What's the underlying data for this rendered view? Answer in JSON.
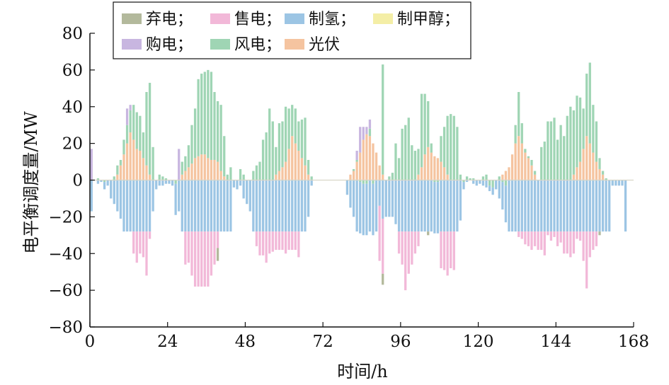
{
  "chart_data": {
    "type": "bar",
    "stacked": true,
    "xlabel": "时间/h",
    "ylabel": "电平衡调度量/MW",
    "xlim": [
      0,
      168
    ],
    "ylim": [
      -80,
      80
    ],
    "xticks": [
      "0",
      "24",
      "48",
      "72",
      "96",
      "120",
      "144",
      "168"
    ],
    "yticks": [
      "80",
      "60",
      "40",
      "20",
      "0",
      "−20",
      "−40",
      "−60",
      "−80"
    ],
    "grid": false,
    "legend_position": "top-left",
    "legend": [
      {
        "label": "弃电；",
        "color": "#b3b99c"
      },
      {
        "label": "售电；",
        "color": "#f2b8d8"
      },
      {
        "label": "制氢；",
        "color": "#9cc5e4"
      },
      {
        "label": "制甲醇；",
        "color": "#f4eea6"
      },
      {
        "label": "购电；",
        "color": "#c8b6e0"
      },
      {
        "label": "风电；",
        "color": "#9fd5b4"
      },
      {
        "label": "光伏",
        "color": "#f5c4a0"
      }
    ],
    "hours": [
      0,
      1,
      2,
      3,
      4,
      5,
      6,
      7,
      8,
      9,
      10,
      11,
      12,
      13,
      14,
      15,
      16,
      17,
      18,
      19,
      20,
      21,
      22,
      23,
      24,
      25,
      26,
      27,
      28,
      29,
      30,
      31,
      32,
      33,
      34,
      35,
      36,
      37,
      38,
      39,
      40,
      41,
      42,
      43,
      44,
      45,
      46,
      47,
      48,
      49,
      50,
      51,
      52,
      53,
      54,
      55,
      56,
      57,
      58,
      59,
      60,
      61,
      62,
      63,
      64,
      65,
      66,
      67,
      68,
      69,
      70,
      71,
      72,
      73,
      74,
      75,
      76,
      77,
      78,
      79,
      80,
      81,
      82,
      83,
      84,
      85,
      86,
      87,
      88,
      89,
      90,
      91,
      92,
      93,
      94,
      95,
      96,
      97,
      98,
      99,
      100,
      101,
      102,
      103,
      104,
      105,
      106,
      107,
      108,
      109,
      110,
      111,
      112,
      113,
      114,
      115,
      116,
      117,
      118,
      119,
      120,
      121,
      122,
      123,
      124,
      125,
      126,
      127,
      128,
      129,
      130,
      131,
      132,
      133,
      134,
      135,
      136,
      137,
      138,
      139,
      140,
      141,
      142,
      143,
      144,
      145,
      146,
      147,
      148,
      149,
      150,
      151,
      152,
      153,
      154,
      155,
      156,
      157,
      158,
      159,
      160,
      161,
      162,
      163,
      164,
      165,
      166,
      167
    ],
    "series": [
      {
        "name": "光伏",
        "values": [
          0,
          0,
          0,
          0,
          0,
          0,
          0,
          0,
          3,
          8,
          14,
          20,
          26,
          22,
          17,
          16,
          12,
          8,
          3,
          0,
          0,
          0,
          0,
          0,
          0,
          0,
          0,
          0,
          3,
          5,
          7,
          9,
          12,
          13,
          14,
          14,
          12,
          11,
          11,
          10,
          5,
          2,
          0,
          0,
          0,
          0,
          0,
          0,
          0,
          0,
          0,
          0,
          0,
          0,
          0,
          0,
          0,
          3,
          5,
          7,
          10,
          17,
          24,
          20,
          16,
          12,
          8,
          3,
          0,
          0,
          0,
          0,
          0,
          0,
          0,
          0,
          0,
          0,
          0,
          0,
          3,
          5,
          10,
          15,
          22,
          25,
          24,
          20,
          15,
          8,
          3,
          0,
          0,
          0,
          0,
          0,
          0,
          0,
          0,
          0,
          0,
          3,
          7,
          14,
          18,
          15,
          13,
          12,
          10,
          7,
          3,
          0,
          0,
          0,
          0,
          0,
          0,
          0,
          0,
          0,
          0,
          0,
          0,
          0,
          0,
          0,
          0,
          3,
          5,
          7,
          14,
          20,
          24,
          20,
          15,
          12,
          8,
          3,
          0,
          0,
          0,
          0,
          0,
          0,
          0,
          0,
          0,
          0,
          0,
          3,
          7,
          10,
          17,
          24,
          20,
          15,
          10,
          6,
          3,
          0,
          0,
          0,
          0,
          0,
          0,
          0,
          0,
          0
        ]
      },
      {
        "name": "风电",
        "values": [
          0,
          0,
          1,
          0,
          -1,
          0,
          0,
          2,
          5,
          3,
          8,
          10,
          12,
          19,
          20,
          19,
          14,
          40,
          50,
          18,
          0,
          3,
          2,
          1,
          0,
          0,
          -2,
          0,
          7,
          8,
          12,
          21,
          27,
          42,
          44,
          45,
          48,
          48,
          37,
          33,
          36,
          22,
          3,
          7,
          0,
          0,
          6,
          3,
          0,
          0,
          5,
          8,
          10,
          22,
          26,
          39,
          32,
          15,
          26,
          25,
          30,
          22,
          17,
          19,
          16,
          21,
          26,
          8,
          2,
          0,
          0,
          0,
          0,
          0,
          0,
          0,
          0,
          0,
          0,
          0,
          0,
          1,
          1,
          -1,
          -2,
          -2,
          4,
          -2,
          0,
          0,
          60,
          0,
          2,
          4,
          20,
          12,
          28,
          30,
          34,
          19,
          16,
          14,
          40,
          33,
          25,
          5,
          -1,
          -1,
          14,
          22,
          32,
          36,
          35,
          29,
          3,
          -1,
          2,
          1,
          1,
          0,
          0,
          2,
          3,
          -3,
          -4,
          0,
          2,
          -1,
          -3,
          0,
          0,
          10,
          24,
          11,
          2,
          1,
          3,
          2,
          0,
          18,
          21,
          32,
          32,
          34,
          22,
          30,
          24,
          35,
          40,
          35,
          39,
          35,
          22,
          34,
          44,
          26,
          22,
          6,
          2,
          1,
          0,
          0
        ]
      },
      {
        "name": "购电",
        "values": [
          17,
          0,
          0,
          0,
          0,
          0,
          0,
          0,
          0,
          0,
          0,
          9,
          3,
          0,
          0,
          0,
          0,
          0,
          0,
          0,
          0,
          0,
          0,
          0,
          0,
          0,
          0,
          17,
          0,
          0,
          0,
          0,
          0,
          0,
          0,
          0,
          0,
          0,
          0,
          0,
          0,
          0,
          0,
          0,
          0,
          0,
          0,
          0,
          0,
          0,
          0,
          0,
          0,
          0,
          0,
          0,
          0,
          0,
          0,
          0,
          0,
          0,
          0,
          0,
          0,
          0,
          0,
          0,
          0,
          0,
          0,
          0,
          0,
          0,
          0,
          0,
          0,
          0,
          0,
          0,
          0,
          0,
          5,
          14,
          7,
          4,
          5,
          0,
          0,
          0,
          0,
          0,
          0,
          0,
          0,
          0,
          0,
          0,
          0,
          0,
          0,
          0,
          0,
          0,
          0,
          0,
          0,
          0,
          0,
          0,
          0,
          0,
          0,
          0,
          0,
          0,
          0,
          0,
          0,
          0,
          0,
          0,
          0,
          0,
          0,
          0,
          0,
          0,
          0,
          0,
          0,
          0,
          0,
          0,
          0,
          0,
          0,
          0,
          0,
          0,
          0,
          0,
          0,
          0,
          0,
          0,
          0,
          0,
          0,
          0,
          0,
          0,
          0,
          0,
          0,
          0,
          0,
          0,
          0,
          0,
          0,
          0,
          0,
          0
        ]
      },
      {
        "name": "制甲醇",
        "values": [
          0,
          0,
          0,
          0,
          0,
          0,
          0,
          0,
          0,
          0,
          0,
          0,
          0,
          0,
          0,
          0,
          0,
          0,
          0,
          0,
          0,
          0,
          0,
          0,
          0,
          0,
          0,
          0,
          0,
          0,
          0,
          0,
          0,
          0,
          0,
          0,
          0,
          0,
          0,
          0,
          0,
          0,
          0,
          0,
          0,
          0,
          0,
          0,
          0,
          0,
          0,
          0,
          0,
          0,
          0,
          0,
          0,
          0,
          0,
          0,
          0,
          0,
          0,
          0,
          0,
          0,
          0,
          0,
          0,
          0,
          0,
          0,
          0,
          0,
          0,
          0,
          0,
          0,
          0,
          0,
          0,
          0,
          0,
          0,
          0,
          0,
          0,
          0,
          0,
          0,
          0,
          0,
          0,
          0,
          0,
          0,
          0,
          0,
          0,
          0,
          0,
          0,
          0,
          0,
          0,
          0,
          0,
          0,
          0,
          0,
          0,
          0,
          0,
          0,
          0,
          0,
          0,
          0,
          0,
          0,
          0,
          0,
          0,
          0,
          0,
          0,
          0,
          0,
          0,
          0,
          0,
          0,
          0,
          0,
          0,
          0,
          0,
          0,
          0,
          0,
          0,
          0,
          0,
          0,
          0,
          0,
          0,
          0,
          0,
          0,
          0,
          0,
          0,
          0,
          0,
          0,
          0,
          0,
          0,
          0,
          0,
          0,
          0,
          0,
          0,
          0,
          0,
          0
        ]
      },
      {
        "name": "制氢",
        "values": [
          -17,
          0,
          -2,
          -1,
          -4,
          -3,
          -10,
          -13,
          -17,
          -21,
          -28,
          -28,
          -28,
          -28,
          -28,
          -28,
          -28,
          -28,
          -28,
          -17,
          -5,
          -3,
          -3,
          -2,
          -2,
          -3,
          -17,
          -17,
          -28,
          -28,
          -28,
          -28,
          -28,
          -28,
          -28,
          -28,
          -28,
          -28,
          -28,
          -28,
          -28,
          -28,
          -28,
          -28,
          -4,
          -5,
          -3,
          -10,
          -13,
          -17,
          -28,
          -28,
          -28,
          -28,
          -28,
          -28,
          -28,
          -28,
          -28,
          -28,
          -28,
          -28,
          -28,
          -28,
          -28,
          -28,
          -28,
          -20,
          -3,
          0,
          0,
          0,
          0,
          0,
          0,
          0,
          0,
          0,
          0,
          -8,
          -15,
          -20,
          -28,
          -28,
          -28,
          -28,
          -28,
          -28,
          -28,
          -14,
          -21,
          -20,
          -20,
          -20,
          -24,
          -28,
          -28,
          -28,
          -28,
          -28,
          -28,
          -28,
          -28,
          -28,
          -28,
          -28,
          -28,
          -28,
          -28,
          -28,
          -28,
          -28,
          -28,
          -28,
          -22,
          -4,
          -1,
          0,
          -2,
          -3,
          -2,
          -3,
          -4,
          -3,
          -4,
          -5,
          -10,
          -15,
          -20,
          -28,
          -28,
          -28,
          -28,
          -28,
          -28,
          -28,
          -28,
          -28,
          -28,
          -28,
          -28,
          -28,
          -28,
          -28,
          -28,
          -28,
          -28,
          -28,
          -28,
          -28,
          -28,
          -28,
          -28,
          -28,
          -28,
          -28,
          -28,
          -28,
          -28,
          -28,
          -28,
          -3,
          -3,
          -3,
          -3,
          -28
        ]
      },
      {
        "name": "售电",
        "values": [
          0,
          0,
          0,
          0,
          0,
          0,
          0,
          0,
          0,
          0,
          0,
          0,
          0,
          -12,
          -17,
          -12,
          -14,
          -24,
          -4,
          0,
          0,
          0,
          0,
          0,
          0,
          0,
          0,
          0,
          0,
          -18,
          -17,
          -24,
          -30,
          -30,
          -30,
          -30,
          -30,
          -24,
          -18,
          -9,
          0,
          0,
          0,
          0,
          0,
          0,
          0,
          0,
          0,
          0,
          0,
          -8,
          -13,
          -13,
          -17,
          -12,
          -11,
          -10,
          -10,
          -10,
          -12,
          -10,
          -10,
          -10,
          -14,
          0,
          0,
          0,
          0,
          0,
          0,
          0,
          0,
          0,
          0,
          0,
          0,
          0,
          0,
          0,
          0,
          0,
          0,
          0,
          0,
          0,
          0,
          0,
          0,
          -30,
          -30,
          0,
          0,
          0,
          0,
          -12,
          -18,
          -32,
          -23,
          -18,
          -12,
          -8,
          0,
          0,
          0,
          0,
          0,
          0,
          -20,
          -21,
          -24,
          -20,
          -21,
          0,
          0,
          0,
          0,
          0,
          0,
          0,
          0,
          0,
          0,
          0,
          0,
          0,
          0,
          0,
          0,
          0,
          0,
          0,
          -3,
          -4,
          -7,
          -8,
          -10,
          -8,
          -10,
          -10,
          -13,
          -2,
          -5,
          -3,
          -8,
          -6,
          -12,
          -12,
          -14,
          -12,
          -4,
          -5,
          -16,
          -31,
          -14,
          -10,
          -8,
          0,
          0,
          0,
          0,
          0,
          0,
          0,
          0,
          0,
          0
        ]
      },
      {
        "name": "弃电",
        "values": [
          0,
          0,
          0,
          0,
          0,
          0,
          0,
          0,
          0,
          0,
          0,
          0,
          0,
          0,
          0,
          0,
          0,
          0,
          0,
          0,
          0,
          0,
          0,
          0,
          0,
          0,
          0,
          0,
          0,
          0,
          0,
          0,
          0,
          0,
          0,
          0,
          0,
          0,
          0,
          -7,
          0,
          0,
          0,
          0,
          0,
          0,
          0,
          0,
          0,
          0,
          0,
          0,
          0,
          0,
          0,
          0,
          0,
          0,
          0,
          0,
          0,
          0,
          0,
          0,
          0,
          0,
          0,
          0,
          0,
          0,
          0,
          0,
          0,
          0,
          0,
          0,
          0,
          0,
          0,
          0,
          0,
          0,
          0,
          0,
          0,
          0,
          0,
          0,
          0,
          0,
          -6,
          0,
          0,
          0,
          0,
          0,
          0,
          0,
          0,
          0,
          0,
          0,
          0,
          0,
          -2,
          0,
          0,
          0,
          0,
          0,
          0,
          0,
          0,
          0,
          0,
          0,
          0,
          0,
          0,
          0,
          0,
          0,
          0,
          0,
          0,
          0,
          0,
          0,
          0,
          0,
          0,
          0,
          0,
          0,
          0,
          0,
          0,
          0,
          0,
          0,
          0,
          0,
          0,
          0,
          0,
          0,
          0,
          0,
          0,
          0,
          0,
          0,
          0,
          0,
          0,
          0,
          0,
          -2,
          0,
          0,
          0,
          0,
          0,
          0,
          0,
          0
        ]
      }
    ]
  }
}
